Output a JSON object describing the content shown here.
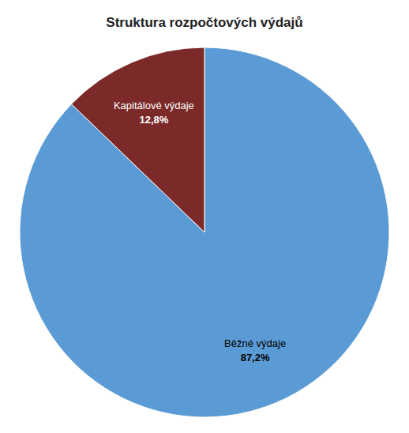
{
  "chart_data": {
    "type": "pie",
    "title": "Struktura rozpočtových výdajů",
    "categories": [
      "Běžné výdaje",
      "Kapitálové výdaje"
    ],
    "values": [
      87.2,
      12.8
    ],
    "value_labels": [
      "87,2%",
      "12,8%"
    ],
    "colors": [
      "#5B9BD5",
      "#7B2929"
    ],
    "data_labels": true
  }
}
